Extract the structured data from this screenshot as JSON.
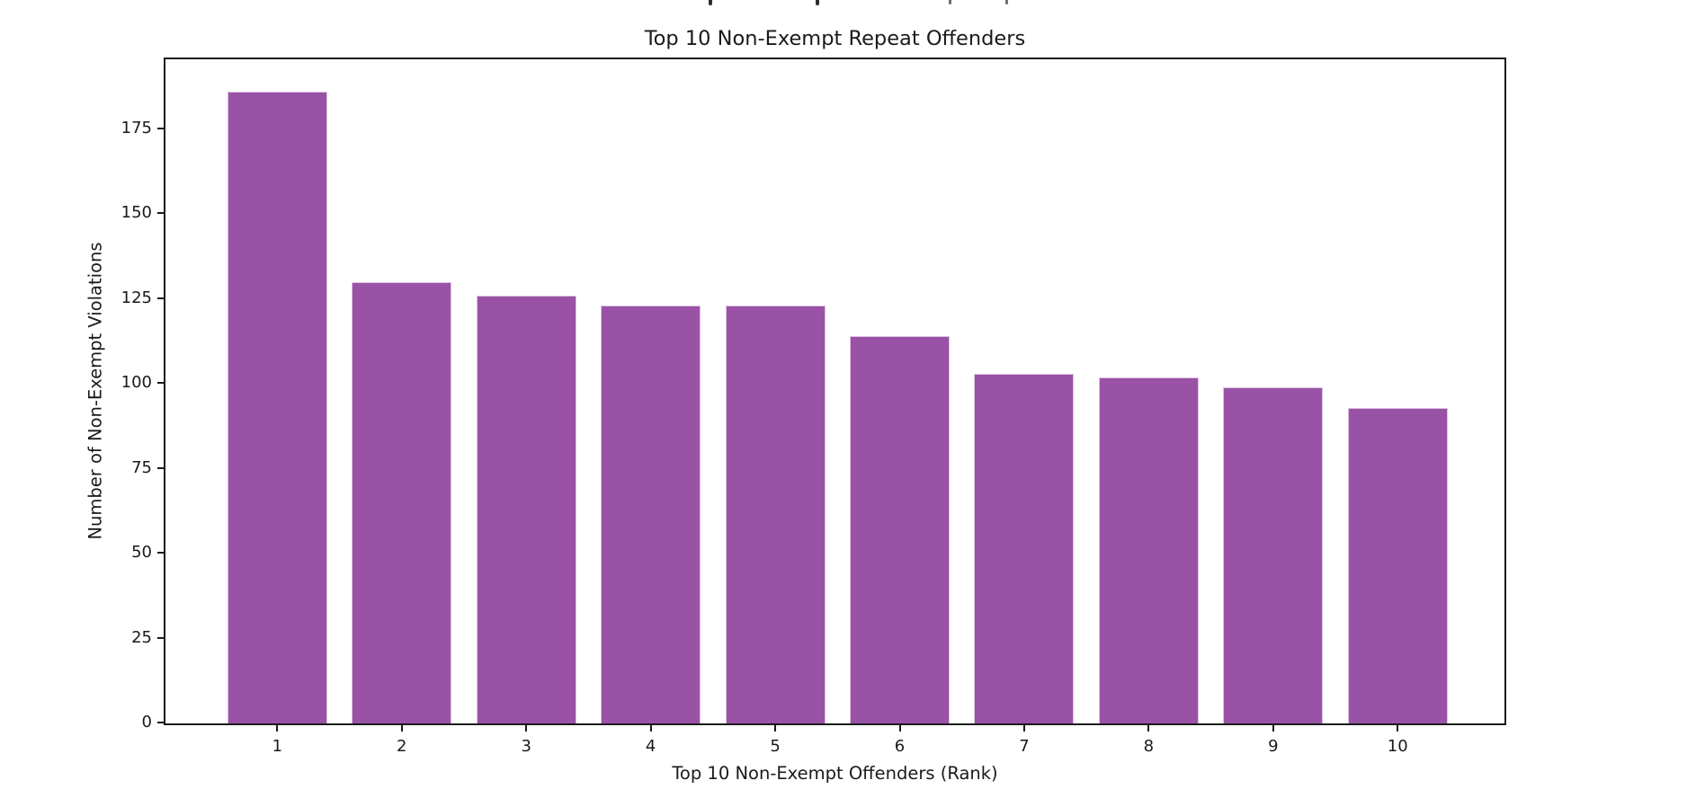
{
  "figure": {
    "background": "#ffffff",
    "text_color": "#1a1a1a",
    "clipped_suptitle_descenders": {
      "marks_x": [
        788,
        907,
        1055,
        1118
      ],
      "dark_color": "#2e2e2e",
      "light_color": "#6f6f6f"
    }
  },
  "chart_data": {
    "type": "bar",
    "title": "Top 10 Non-Exempt Repeat Offenders",
    "xlabel": "Top 10 Non-Exempt Offenders (Rank)",
    "ylabel": "Number of Non-Exempt Violations",
    "categories": [
      "1",
      "2",
      "3",
      "4",
      "5",
      "6",
      "7",
      "8",
      "9",
      "10"
    ],
    "values": [
      186,
      130,
      126,
      123,
      123,
      114,
      103,
      102,
      99,
      93
    ],
    "yticks": [
      0,
      25,
      50,
      75,
      100,
      125,
      150,
      175
    ],
    "ylim": [
      0,
      195.3
    ],
    "bar_color": "#9a52a6",
    "bar_edge_color": "#dcc3e2",
    "grid": false,
    "legend": "none"
  }
}
